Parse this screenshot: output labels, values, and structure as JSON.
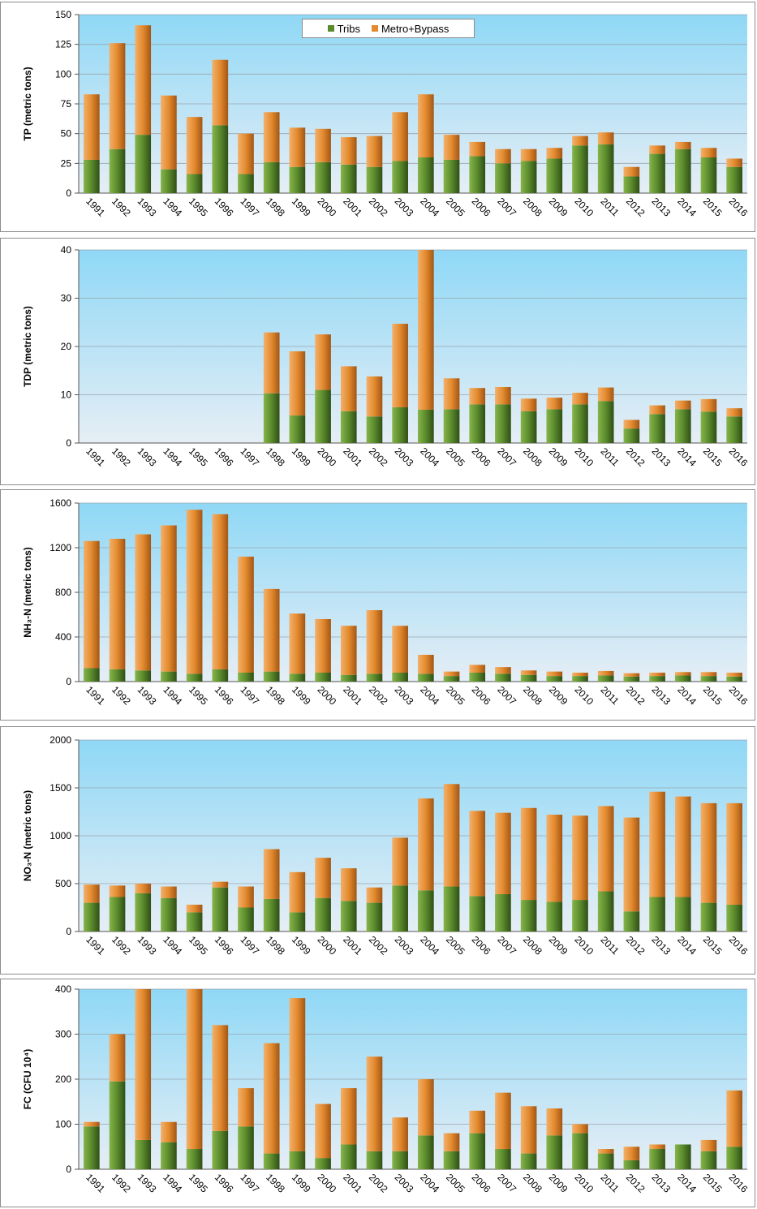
{
  "legend": {
    "tribs_label": "Tribs",
    "metro_label": "Metro+Bypass",
    "tribs_color": "#5a8a2c",
    "metro_color": "#e38a2e"
  },
  "chart_data": [
    {
      "type": "bar",
      "stacked": true,
      "ylabel": "TP (metric tons)",
      "ylim": [
        0,
        150
      ],
      "yticks": [
        0,
        25,
        50,
        75,
        100,
        125,
        150
      ],
      "grid": true,
      "legend": "top-center",
      "categories": [
        "1991",
        "1992",
        "1993",
        "1994",
        "1995",
        "1996",
        "1997",
        "1998",
        "1999",
        "2000",
        "2001",
        "2002",
        "2003",
        "2004",
        "2005",
        "2006",
        "2007",
        "2008",
        "2009",
        "2010",
        "2011",
        "2012",
        "2013",
        "2014",
        "2015",
        "2016"
      ],
      "series": [
        {
          "name": "Tribs",
          "values": [
            28,
            37,
            49,
            20,
            16,
            57,
            16,
            26,
            22,
            26,
            24,
            22,
            27,
            30,
            28,
            31,
            25,
            27,
            29,
            40,
            41,
            14,
            33,
            37,
            30,
            22
          ]
        },
        {
          "name": "Metro+Bypass",
          "values": [
            55,
            89,
            92,
            62,
            48,
            55,
            34,
            42,
            33,
            28,
            23,
            26,
            41,
            53,
            21,
            12,
            12,
            10,
            9,
            8,
            10,
            8,
            7,
            6,
            8,
            7
          ]
        }
      ]
    },
    {
      "type": "bar",
      "stacked": true,
      "ylabel": "TDP (metric tons)",
      "ylim": [
        0,
        40
      ],
      "yticks": [
        0,
        10,
        20,
        30,
        40
      ],
      "grid": true,
      "categories": [
        "1991",
        "1992",
        "1993",
        "1994",
        "1995",
        "1996",
        "1997",
        "1998",
        "1999",
        "2000",
        "2001",
        "2002",
        "2003",
        "2004",
        "2005",
        "2006",
        "2007",
        "2008",
        "2009",
        "2010",
        "2011",
        "2012",
        "2013",
        "2014",
        "2015",
        "2016"
      ],
      "series": [
        {
          "name": "Tribs",
          "values": [
            0,
            0,
            0,
            0,
            0,
            0,
            0,
            10.3,
            5.7,
            11.0,
            6.6,
            5.5,
            7.4,
            6.9,
            7.0,
            8.0,
            8.0,
            6.6,
            7.0,
            8.0,
            8.7,
            3.0,
            6.0,
            7.0,
            6.5,
            5.5
          ]
        },
        {
          "name": "Metro+Bypass",
          "values": [
            0,
            0,
            0,
            0,
            0,
            0,
            0,
            12.6,
            13.3,
            11.5,
            9.3,
            8.3,
            17.3,
            33.1,
            6.4,
            3.4,
            3.6,
            2.6,
            2.4,
            2.4,
            2.8,
            1.8,
            1.8,
            1.8,
            2.6,
            1.7
          ]
        }
      ]
    },
    {
      "type": "bar",
      "stacked": true,
      "ylabel": "NH₃-N (metric tons)",
      "ylim": [
        0,
        1600
      ],
      "yticks": [
        0,
        400,
        800,
        1200,
        1600
      ],
      "grid": true,
      "categories": [
        "1991",
        "1992",
        "1993",
        "1994",
        "1995",
        "1996",
        "1997",
        "1998",
        "1999",
        "2000",
        "2001",
        "2002",
        "2003",
        "2004",
        "2005",
        "2006",
        "2007",
        "2008",
        "2009",
        "2010",
        "2011",
        "2012",
        "2013",
        "2014",
        "2015",
        "2016"
      ],
      "series": [
        {
          "name": "Tribs",
          "values": [
            120,
            110,
            100,
            90,
            70,
            110,
            80,
            90,
            70,
            80,
            60,
            70,
            80,
            70,
            50,
            80,
            70,
            60,
            50,
            50,
            55,
            45,
            50,
            55,
            50,
            45
          ]
        },
        {
          "name": "Metro+Bypass",
          "values": [
            1140,
            1170,
            1220,
            1310,
            1470,
            1390,
            1040,
            740,
            540,
            480,
            440,
            570,
            420,
            170,
            40,
            70,
            60,
            40,
            40,
            30,
            40,
            30,
            30,
            30,
            35,
            35
          ]
        }
      ]
    },
    {
      "type": "bar",
      "stacked": true,
      "ylabel": "NO₃-N (metric tons)",
      "ylim": [
        0,
        2000
      ],
      "yticks": [
        0,
        500,
        1000,
        1500,
        2000
      ],
      "grid": true,
      "categories": [
        "1991",
        "1992",
        "1993",
        "1994",
        "1995",
        "1996",
        "1997",
        "1998",
        "1999",
        "2000",
        "2001",
        "2002",
        "2003",
        "2004",
        "2005",
        "2006",
        "2007",
        "2008",
        "2009",
        "2010",
        "2011",
        "2012",
        "2013",
        "2014",
        "2015",
        "2016"
      ],
      "series": [
        {
          "name": "Tribs",
          "values": [
            300,
            360,
            400,
            350,
            200,
            460,
            250,
            340,
            200,
            350,
            320,
            300,
            480,
            430,
            470,
            370,
            390,
            330,
            310,
            330,
            420,
            210,
            360,
            360,
            300,
            280
          ]
        },
        {
          "name": "Metro+Bypass",
          "values": [
            190,
            120,
            100,
            120,
            80,
            60,
            220,
            520,
            420,
            420,
            340,
            160,
            500,
            960,
            1070,
            890,
            850,
            960,
            910,
            880,
            890,
            980,
            1100,
            1050,
            1040,
            1060
          ]
        }
      ]
    },
    {
      "type": "bar",
      "stacked": true,
      "ylabel": "FC  (CFU 10⁴)",
      "ylim": [
        0,
        400
      ],
      "yticks": [
        0,
        100,
        200,
        300,
        400
      ],
      "grid": true,
      "categories": [
        "1991",
        "1992",
        "1993",
        "1994",
        "1995",
        "1996",
        "1997",
        "1998",
        "1999",
        "2000",
        "2001",
        "2002",
        "2003",
        "2004",
        "2005",
        "2006",
        "2007",
        "2008",
        "2009",
        "2010",
        "2011",
        "2012",
        "2013",
        "2014",
        "2015",
        "2016"
      ],
      "series": [
        {
          "name": "Tribs",
          "values": [
            95,
            195,
            65,
            60,
            45,
            85,
            95,
            35,
            40,
            25,
            55,
            40,
            40,
            75,
            40,
            80,
            45,
            35,
            75,
            80,
            35,
            20,
            45,
            55,
            40,
            50
          ]
        },
        {
          "name": "Metro+Bypass",
          "values": [
            10,
            105,
            335,
            45,
            355,
            235,
            85,
            245,
            340,
            120,
            125,
            210,
            75,
            125,
            40,
            50,
            125,
            105,
            60,
            20,
            10,
            30,
            10,
            0,
            25,
            125
          ]
        }
      ]
    }
  ]
}
